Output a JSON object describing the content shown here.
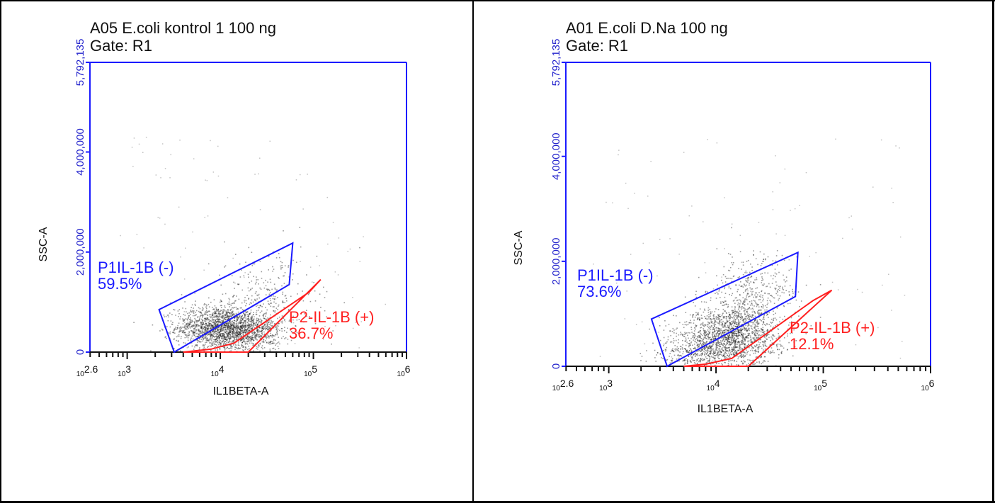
{
  "colors": {
    "axis": "#1a1aff",
    "gate_negative": "#1a1aff",
    "gate_positive": "#ff2020",
    "points": "#222222",
    "frame": "#000000"
  },
  "chart_data": [
    {
      "type": "scatter",
      "title": "A05 E.coli kontrol 1 100 ng",
      "subtitle": "Gate: R1",
      "xlabel": "IL1BETA-A",
      "ylabel": "SSC-A",
      "xscale": "log",
      "xlim": [
        398,
        1000000
      ],
      "ylim": [
        0,
        5792135
      ],
      "y_tick_labels": [
        "0",
        "2,000,000",
        "4,000,000",
        "5,792,135"
      ],
      "y_tick_values": [
        0,
        2000000,
        4000000,
        5792135
      ],
      "x_tick_labels": [
        {
          "base": "10",
          "exp": "2.6"
        },
        {
          "base": "10",
          "exp": "3"
        },
        {
          "base": "10",
          "exp": "4"
        },
        {
          "base": "10",
          "exp": "5"
        },
        {
          "base": "10",
          "exp": "6"
        }
      ],
      "x_tick_values": [
        398,
        1000,
        10000,
        100000,
        1000000
      ],
      "gates": [
        {
          "name": "P1IL-1B (-)",
          "percent": "59.5%",
          "color": "negative",
          "polygon": [
            [
              2200,
              850000
            ],
            [
              3200,
              0
            ],
            [
              55000,
              1350000
            ],
            [
              60000,
              2180000
            ]
          ]
        },
        {
          "name": "P2-IL-1B (+)",
          "percent": "36.7%",
          "color": "positive",
          "polygon": [
            [
              4000,
              0
            ],
            [
              20000,
              0
            ],
            [
              120000,
              1450000
            ],
            [
              90000,
              1200000
            ],
            [
              14000,
              180000
            ],
            [
              8000,
              60000
            ]
          ]
        }
      ],
      "populations": [
        {
          "x": 9000,
          "y": 500000,
          "sx": 0.22,
          "sy": 220000,
          "n": 1500
        },
        {
          "x": 20000,
          "y": 420000,
          "sx": 0.18,
          "sy": 200000,
          "n": 650
        },
        {
          "x": 30000,
          "y": 900000,
          "sx": 0.28,
          "sy": 550000,
          "n": 400
        }
      ]
    },
    {
      "type": "scatter",
      "title": "A01 E.coli D.Na 100 ng",
      "subtitle": "Gate: R1",
      "xlabel": "IL1BETA-A",
      "ylabel": "SSC-A",
      "xscale": "log",
      "xlim": [
        398,
        1000000
      ],
      "ylim": [
        0,
        5792135
      ],
      "y_tick_labels": [
        "0",
        "2,000,000",
        "4,000,000",
        "5,792,135"
      ],
      "y_tick_values": [
        0,
        2000000,
        4000000,
        5792135
      ],
      "x_tick_labels": [
        {
          "base": "10",
          "exp": "2.6"
        },
        {
          "base": "10",
          "exp": "3"
        },
        {
          "base": "10",
          "exp": "4"
        },
        {
          "base": "10",
          "exp": "5"
        },
        {
          "base": "10",
          "exp": "6"
        }
      ],
      "x_tick_values": [
        398,
        1000,
        10000,
        100000,
        1000000
      ],
      "gates": [
        {
          "name": "P1IL-1B (-)",
          "percent": "73.6%",
          "color": "negative",
          "polygon": [
            [
              2500,
              900000
            ],
            [
              3500,
              0
            ],
            [
              55000,
              1330000
            ],
            [
              58000,
              2170000
            ]
          ]
        },
        {
          "name": "P2-IL-1B (+)",
          "percent": "12.1%",
          "color": "positive",
          "polygon": [
            [
              5000,
              0
            ],
            [
              20000,
              0
            ],
            [
              120000,
              1450000
            ],
            [
              80000,
              1250000
            ],
            [
              14000,
              150000
            ],
            [
              8000,
              40000
            ]
          ]
        }
      ],
      "populations": [
        {
          "x": 12000,
          "y": 550000,
          "sx": 0.22,
          "sy": 280000,
          "n": 1500
        },
        {
          "x": 22000,
          "y": 1100000,
          "sx": 0.2,
          "sy": 500000,
          "n": 700
        },
        {
          "x": 6000,
          "y": 250000,
          "sx": 0.2,
          "sy": 150000,
          "n": 250
        }
      ]
    }
  ]
}
